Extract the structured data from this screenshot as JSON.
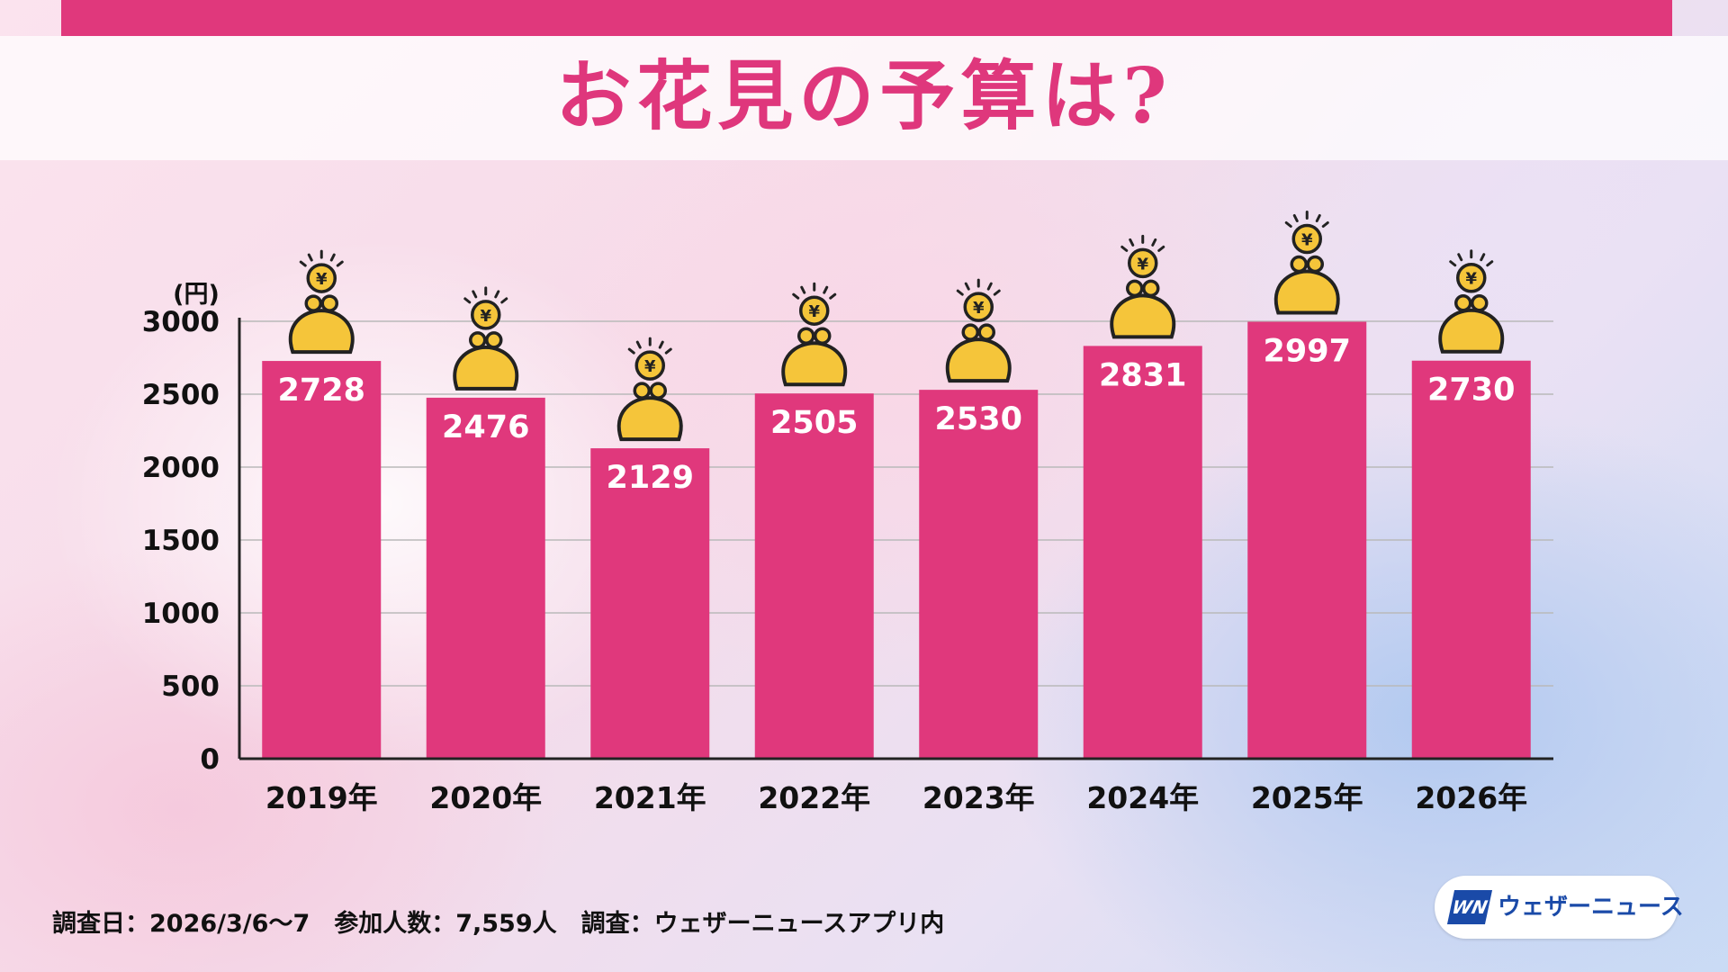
{
  "header": {
    "title": "お花見の予算は?"
  },
  "chart_data": {
    "type": "bar",
    "ylabel": "(円)",
    "categories": [
      "2019年",
      "2020年",
      "2021年",
      "2022年",
      "2023年",
      "2024年",
      "2025年",
      "2026年"
    ],
    "values": [
      2728,
      2476,
      2129,
      2505,
      2530,
      2831,
      2997,
      2730
    ],
    "ylim": [
      0,
      3000
    ],
    "yticks": [
      0,
      500,
      1000,
      1500,
      2000,
      2500,
      3000
    ],
    "grid": true,
    "colors": {
      "bar": "#e0387c",
      "coin": "#f5c53a",
      "axis": "#222222"
    },
    "icon": "yen-coin-purse-icon"
  },
  "footer": {
    "note": "調査日：2026/3/6〜7　参加人数：7,559人　調査：ウェザーニュースアプリ内"
  },
  "brand": {
    "logo": "WN",
    "name": "ウェザーニュース"
  }
}
